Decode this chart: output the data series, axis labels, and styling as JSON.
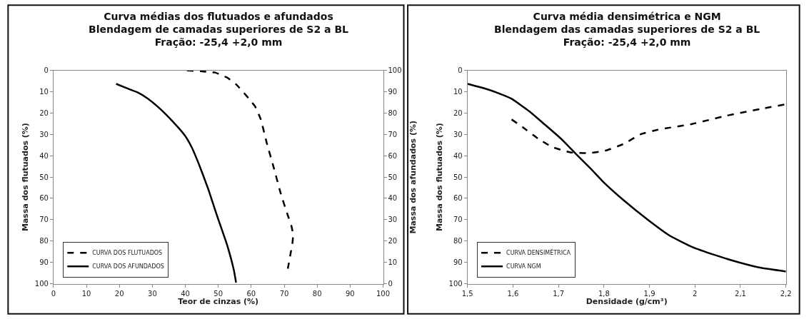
{
  "chart_data": [
    {
      "type": "line",
      "title": "Curva médias dos flutuados e afundados\nBlendagem de camadas superiores de S2 a BL\nFração: -25,4 +2,0 mm",
      "xlabel": "Teor de cinzas (%)",
      "ylabel": "Massa dos flutuados (%)",
      "y2label": "Massa dos afundados (%)",
      "xlim": [
        0,
        100
      ],
      "xticks": [
        0,
        10,
        20,
        30,
        40,
        50,
        60,
        70,
        80,
        90,
        100
      ],
      "ylim": [
        100,
        0
      ],
      "yticks": [
        0,
        10,
        20,
        30,
        40,
        50,
        60,
        70,
        80,
        90,
        100
      ],
      "y2lim": [
        0,
        100
      ],
      "y2ticks": [
        0,
        10,
        20,
        30,
        40,
        50,
        60,
        70,
        80,
        90,
        100
      ],
      "legend": "bottom left",
      "marker": "none",
      "series": [
        {
          "name": "CURVA DOS FLUTUADOS",
          "color": "#000000",
          "line_style": "dashed",
          "x": [
            40.5,
            45.5,
            49,
            52.6,
            55.4,
            59.7,
            61.2,
            62.9,
            64.7,
            66.9,
            69,
            71.1,
            72.2,
            72.7,
            72.5,
            71.8,
            71.1
          ],
          "values": [
            0,
            0.5,
            1,
            3.3,
            6.5,
            14,
            17,
            23,
            34,
            46,
            58,
            68,
            73,
            77,
            81,
            87,
            93
          ]
        },
        {
          "name": "CURVA DOS AFUNDADOS",
          "color": "#000000",
          "line_style": "solid",
          "axis": "y2",
          "x": [
            19,
            22,
            25.5,
            28.4,
            31.9,
            36.2,
            39.8,
            41.9,
            44,
            46.9,
            49.7,
            52.6,
            54.7,
            55.4
          ],
          "values": [
            93.7,
            91.8,
            89.7,
            87,
            82.6,
            76,
            69.6,
            64.1,
            56.5,
            44.6,
            31.5,
            18.5,
            6.5,
            0.5
          ]
        }
      ]
    },
    {
      "type": "line",
      "title": "Curva média densimétrica e NGM\nBlendagem das camadas superiores de S2 a BL\nFração: -25,4 +2,0 mm",
      "xlabel": "Densidade (g/cm³)",
      "ylabel": "Massa dos flutuados (%)",
      "xlim": [
        1.5,
        2.2
      ],
      "xticks": [
        {
          "value": 1.5,
          "label": "1,5"
        },
        {
          "value": 1.6,
          "label": "1,6"
        },
        {
          "value": 1.7,
          "label": "1,7"
        },
        {
          "value": 1.8,
          "label": "1,8"
        },
        {
          "value": 1.9,
          "label": "1,9"
        },
        2,
        {
          "value": 2.1,
          "label": "2,1"
        },
        {
          "value": 2.2,
          "label": "2,2"
        }
      ],
      "ylim": [
        100,
        0
      ],
      "yticks": [
        0,
        10,
        20,
        30,
        40,
        50,
        60,
        70,
        80,
        90,
        100
      ],
      "legend": "bottom left",
      "marker": "none",
      "series": [
        {
          "name": "CURVA DENSIMÉTRICA",
          "color": "#000000",
          "line_style": "dashed",
          "x": [
            1.597,
            1.622,
            1.656,
            1.686,
            1.726,
            1.766,
            1.805,
            1.845,
            1.88,
            1.919,
            1.994,
            2.068,
            2.143,
            2.2
          ],
          "values": [
            23,
            26.7,
            32.1,
            35.9,
            38.4,
            38.8,
            37.5,
            34.3,
            30,
            27.8,
            25.1,
            21.3,
            18.1,
            15.9
          ]
        },
        {
          "name": "CURVA NGM",
          "color": "#000000",
          "line_style": "solid",
          "x": [
            1.5,
            1.537,
            1.567,
            1.597,
            1.636,
            1.671,
            1.706,
            1.741,
            1.771,
            1.8,
            1.845,
            1.895,
            1.944,
            1.994,
            2.043,
            2.093,
            2.143,
            2.2
          ],
          "values": [
            6.3,
            8.4,
            10.6,
            13.3,
            19.2,
            25.6,
            32.1,
            39.7,
            46.1,
            52.6,
            61.2,
            69.8,
            77.4,
            82.8,
            86.5,
            89.8,
            92.5,
            94.3
          ]
        }
      ]
    }
  ]
}
